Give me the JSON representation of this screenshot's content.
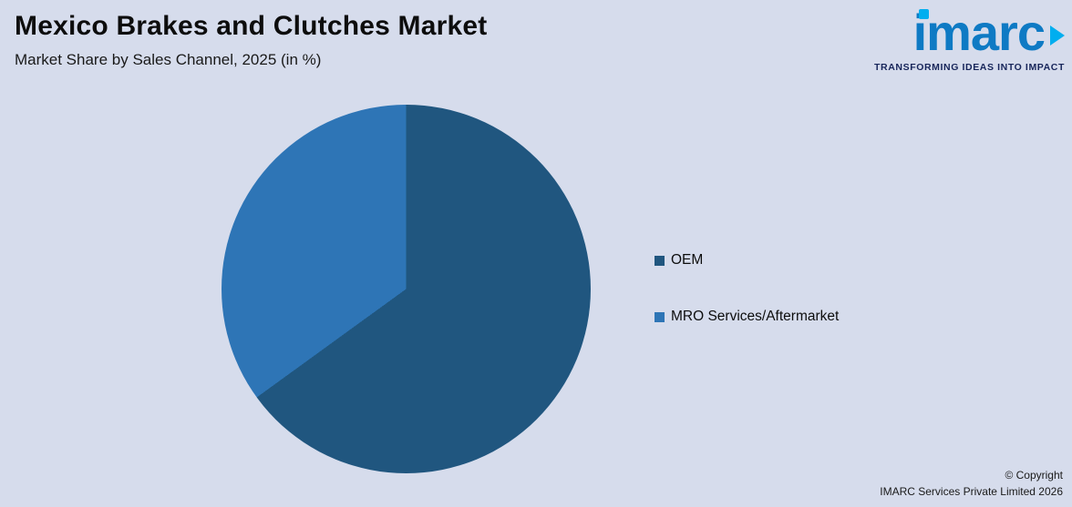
{
  "header": {
    "title": "Mexico Brakes and Clutches Market",
    "subtitle": "Market Share by Sales Channel, 2025 (in %)"
  },
  "logo": {
    "text": "imarc",
    "tagline": "TRANSFORMING IDEAS INTO IMPACT"
  },
  "chart_data": {
    "type": "pie",
    "title": "Market Share by Sales Channel, 2025 (in %)",
    "slices": [
      {
        "label": "OEM",
        "value": 65,
        "color": "#20567F"
      },
      {
        "label": "MRO Services/Aftermarket",
        "value": 35,
        "color": "#2E75B6"
      }
    ],
    "start_angle_deg": 0,
    "direction": "clockwise",
    "legend_position": "right",
    "data_labels_shown": false
  },
  "legend": {
    "items": [
      {
        "label": "OEM",
        "color": "#20567F"
      },
      {
        "label": "MRO Services/Aftermarket",
        "color": "#2E75B6"
      }
    ]
  },
  "footer": {
    "line1": "© Copyright",
    "line2": "IMARC Services Private Limited 2026"
  },
  "colors": {
    "background": "#D6DCEC",
    "logo_blue": "#0E7AC4",
    "logo_cyan": "#00AEEF",
    "tagline_navy": "#17255A"
  }
}
